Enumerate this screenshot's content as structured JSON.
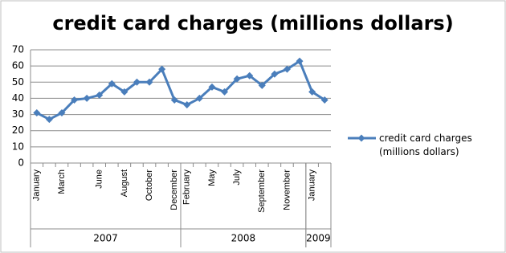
{
  "chart_data": {
    "type": "line",
    "title": "credit card charges (millions dollars)",
    "groups": [
      {
        "name": "2007",
        "categories": [
          "January",
          null,
          "March",
          null,
          null,
          "June",
          null,
          "August",
          null,
          "October",
          null,
          "December"
        ]
      },
      {
        "name": "2008",
        "categories": [
          "February",
          null,
          "May",
          null,
          "July",
          null,
          "September",
          null,
          "November",
          null
        ]
      },
      {
        "name": "2009",
        "categories": [
          "January",
          null
        ]
      }
    ],
    "series": [
      {
        "name": "credit card charges (millions dollars)",
        "color": "#4a7ebb",
        "values": [
          31,
          27,
          31,
          39,
          40,
          42,
          49,
          44,
          50,
          50,
          58,
          39,
          36,
          40,
          47,
          44,
          52,
          54,
          48,
          55,
          58,
          63,
          44,
          39
        ]
      }
    ],
    "ylim": [
      0,
      70
    ],
    "yticks": [
      0,
      10,
      20,
      30,
      40,
      50,
      60,
      70
    ],
    "grid": true,
    "legend": "right"
  }
}
